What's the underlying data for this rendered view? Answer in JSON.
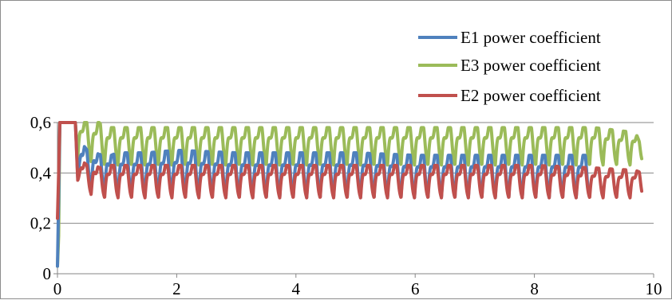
{
  "chart_data": {
    "type": "line",
    "title": "",
    "xlabel": "",
    "ylabel": "",
    "xlim": [
      0,
      10
    ],
    "ylim": [
      0,
      0.6
    ],
    "x_ticks": [
      0,
      2,
      4,
      6,
      8,
      10
    ],
    "x_tick_labels": [
      "0",
      "2",
      "4",
      "6",
      "8",
      "10"
    ],
    "y_ticks": [
      0,
      0.2,
      0.4,
      0.6
    ],
    "y_tick_labels": [
      "0",
      "0,2",
      "0,4",
      "0,6"
    ],
    "grid": "horizontal",
    "legend_position": "top-right",
    "series": [
      {
        "name": "E1 power coefficient",
        "color": "#4f81bd",
        "oscillation_period": 0.226,
        "x": [
          0,
          0.02,
          0.04,
          0.1,
          0.2,
          0.3,
          0.34,
          0.4,
          0.5,
          0.6,
          0.7,
          0.8,
          0.9,
          1.0,
          1.5,
          2.0,
          3.0,
          4.0,
          5.0,
          6.0,
          7.0,
          8.0,
          8.9
        ],
        "y": [
          0.03,
          0.3,
          0.6,
          0.6,
          0.6,
          0.6,
          0.45,
          0.52,
          0.49,
          0.5,
          0.47,
          0.49,
          0.47,
          0.48,
          0.48,
          0.49,
          0.48,
          0.48,
          0.48,
          0.47,
          0.47,
          0.47,
          0.47
        ],
        "y_min": [
          0.03,
          0.3,
          0.6,
          0.6,
          0.6,
          0.6,
          0.38,
          0.35,
          0.33,
          0.32,
          0.32,
          0.31,
          0.31,
          0.31,
          0.31,
          0.31,
          0.3,
          0.3,
          0.3,
          0.3,
          0.3,
          0.3,
          0.3
        ]
      },
      {
        "name": "E3 power coefficient",
        "color": "#9bbb59",
        "oscillation_period": 0.226,
        "x": [
          0,
          0.02,
          0.04,
          0.1,
          0.2,
          0.3,
          0.34,
          0.4,
          0.5,
          0.6,
          0.7,
          0.8,
          1.0,
          1.5,
          2.0,
          3.0,
          4.0,
          5.0,
          6.0,
          7.0,
          8.0,
          9.0,
          9.7,
          9.8
        ],
        "y": [
          0.03,
          0.15,
          0.6,
          0.6,
          0.6,
          0.6,
          0.6,
          0.6,
          0.6,
          0.6,
          0.6,
          0.58,
          0.58,
          0.58,
          0.58,
          0.58,
          0.58,
          0.58,
          0.58,
          0.58,
          0.58,
          0.58,
          0.56,
          0.5
        ],
        "y_min": [
          0.03,
          0.15,
          0.6,
          0.6,
          0.6,
          0.6,
          0.45,
          0.47,
          0.45,
          0.44,
          0.43,
          0.43,
          0.43,
          0.43,
          0.43,
          0.43,
          0.43,
          0.43,
          0.43,
          0.43,
          0.43,
          0.43,
          0.43,
          0.44
        ]
      },
      {
        "name": "E2 power coefficient",
        "color": "#c0504d",
        "oscillation_period": 0.226,
        "x": [
          0,
          0.02,
          0.04,
          0.1,
          0.2,
          0.3,
          0.34,
          0.4,
          0.5,
          0.6,
          0.7,
          0.8,
          1.0,
          1.5,
          2.0,
          3.0,
          4.0,
          5.0,
          6.0,
          7.0,
          8.0,
          9.0,
          9.7,
          9.8
        ],
        "y": [
          0.22,
          0.4,
          0.6,
          0.6,
          0.6,
          0.6,
          0.4,
          0.45,
          0.43,
          0.44,
          0.42,
          0.43,
          0.43,
          0.43,
          0.43,
          0.43,
          0.43,
          0.43,
          0.43,
          0.43,
          0.43,
          0.42,
          0.41,
          0.4
        ],
        "y_min": [
          0.22,
          0.4,
          0.6,
          0.6,
          0.6,
          0.6,
          0.37,
          0.34,
          0.32,
          0.31,
          0.3,
          0.3,
          0.3,
          0.3,
          0.3,
          0.3,
          0.3,
          0.3,
          0.3,
          0.3,
          0.3,
          0.3,
          0.3,
          0.3
        ]
      }
    ]
  }
}
